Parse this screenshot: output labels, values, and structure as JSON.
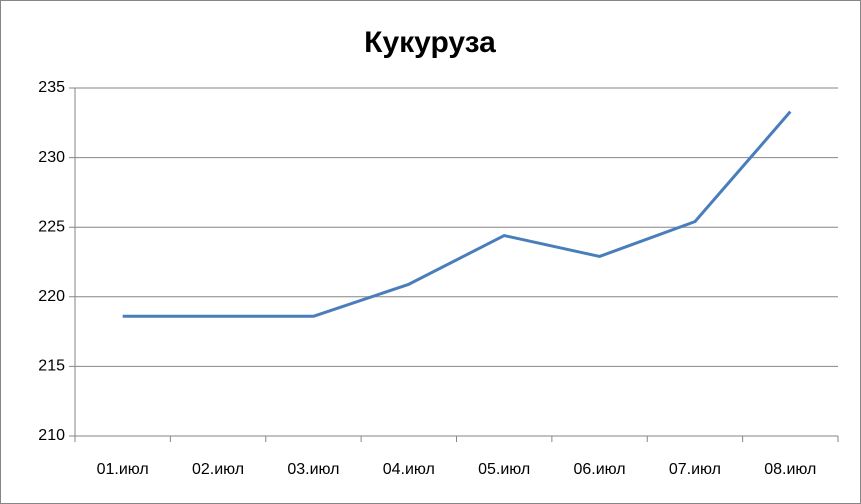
{
  "chart_data": {
    "type": "line",
    "title": "Кукуруза",
    "categories": [
      "01.июл",
      "02.июл",
      "03.июл",
      "04.июл",
      "05.июл",
      "06.июл",
      "07.июл",
      "08.июл"
    ],
    "series": [
      {
        "name": "Кукуруза",
        "color": "#4a7ebb",
        "values": [
          218.6,
          218.6,
          218.6,
          220.9,
          224.4,
          222.9,
          225.4,
          233.3
        ]
      }
    ],
    "ylim": [
      210,
      235
    ],
    "yticks": [
      210,
      215,
      220,
      225,
      230,
      235
    ],
    "grid": true
  }
}
